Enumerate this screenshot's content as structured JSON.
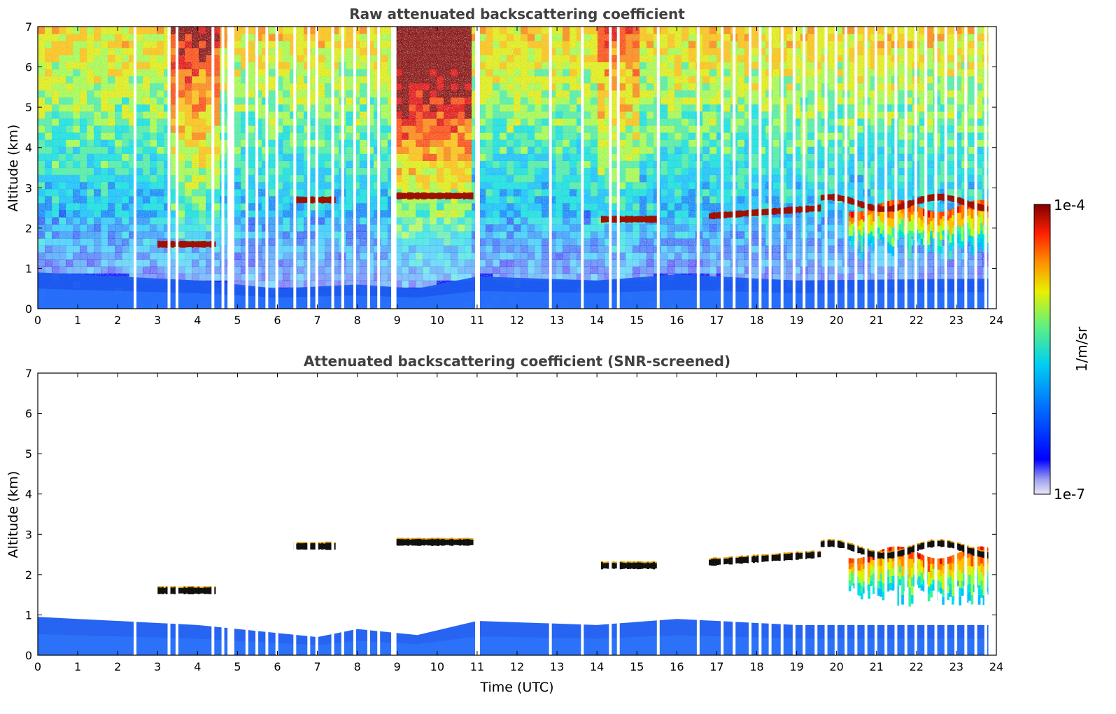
{
  "chart_data": [
    {
      "type": "heatmap",
      "title": "Raw attenuated backscattering coefficient",
      "xlabel": "",
      "ylabel": "Altitude (km)",
      "xlim": [
        0,
        24
      ],
      "ylim": [
        0,
        7
      ],
      "xticks": [
        "0",
        "1",
        "2",
        "3",
        "4",
        "5",
        "6",
        "7",
        "8",
        "9",
        "10",
        "11",
        "12",
        "13",
        "14",
        "15",
        "16",
        "17",
        "18",
        "19",
        "20",
        "21",
        "22",
        "23",
        "24"
      ],
      "yticks": [
        "0",
        "1",
        "2",
        "3",
        "4",
        "5",
        "6",
        "7"
      ],
      "noise_top": true,
      "cloud_layers": [
        {
          "t_start": 3.0,
          "t_end": 4.4,
          "alt": 1.6
        },
        {
          "t_start": 6.4,
          "t_end": 7.4,
          "alt": 2.7
        },
        {
          "t_start": 8.9,
          "t_end": 10.9,
          "alt": 2.8
        },
        {
          "t_start": 14.1,
          "t_end": 15.5,
          "alt": 2.22
        },
        {
          "t_start": 16.8,
          "t_end": 19.6,
          "alt": 2.4
        },
        {
          "t_start": 19.6,
          "t_end": 23.8,
          "alt": 2.62
        }
      ],
      "boundary_layer_top": [
        [
          0,
          0.9
        ],
        [
          2,
          0.8
        ],
        [
          4,
          0.7
        ],
        [
          6,
          0.5
        ],
        [
          8,
          0.6
        ],
        [
          9.5,
          0.5
        ],
        [
          11,
          0.8
        ],
        [
          14,
          0.7
        ],
        [
          16,
          0.85
        ],
        [
          19,
          0.7
        ],
        [
          24,
          0.75
        ]
      ],
      "data_gaps_hours": [
        2.4,
        3.25,
        3.45,
        4.35,
        4.6,
        4.85,
        5.2,
        5.45,
        5.7,
        5.95,
        6.4,
        6.75,
        6.95,
        7.35,
        7.6,
        7.9,
        8.25,
        8.5,
        8.85,
        11.0,
        12.8,
        13.6,
        14.3,
        14.5,
        15.5,
        16.5,
        17.1,
        17.4,
        17.8,
        18.05,
        18.3,
        18.6,
        18.9,
        19.15,
        19.45,
        19.7,
        19.95,
        20.2,
        20.45,
        20.7,
        20.95,
        21.2,
        21.45,
        21.7,
        21.95,
        22.2,
        22.45,
        22.7,
        22.95,
        23.2,
        23.45,
        23.7
      ]
    },
    {
      "type": "heatmap",
      "title": "Attenuated backscattering coefficient (SNR-screened)",
      "xlabel": "Time (UTC)",
      "ylabel": "Altitude (km)",
      "xlim": [
        0,
        24
      ],
      "ylim": [
        0,
        7
      ],
      "xticks": [
        "0",
        "1",
        "2",
        "3",
        "4",
        "5",
        "6",
        "7",
        "8",
        "9",
        "10",
        "11",
        "12",
        "13",
        "14",
        "15",
        "16",
        "17",
        "18",
        "19",
        "20",
        "21",
        "22",
        "23",
        "24"
      ],
      "yticks": [
        "0",
        "1",
        "2",
        "3",
        "4",
        "5",
        "6",
        "7"
      ],
      "noise_top": false,
      "cloud_layers": [
        {
          "t_start": 3.0,
          "t_end": 4.4,
          "alt": 1.6
        },
        {
          "t_start": 6.4,
          "t_end": 7.4,
          "alt": 2.7
        },
        {
          "t_start": 8.9,
          "t_end": 10.9,
          "alt": 2.8
        },
        {
          "t_start": 14.1,
          "t_end": 15.5,
          "alt": 2.22
        },
        {
          "t_start": 16.8,
          "t_end": 19.6,
          "alt": 2.4
        },
        {
          "t_start": 19.6,
          "t_end": 23.8,
          "alt": 2.62
        }
      ],
      "boundary_layer_top": [
        [
          0,
          0.95
        ],
        [
          2,
          0.85
        ],
        [
          4,
          0.75
        ],
        [
          6,
          0.55
        ],
        [
          7,
          0.45
        ],
        [
          8,
          0.65
        ],
        [
          9.5,
          0.5
        ],
        [
          11,
          0.85
        ],
        [
          14,
          0.75
        ],
        [
          16,
          0.9
        ],
        [
          19,
          0.75
        ],
        [
          24,
          0.75
        ]
      ],
      "data_gaps_hours": [
        2.4,
        3.25,
        3.45,
        4.35,
        4.6,
        4.85,
        5.2,
        5.45,
        5.7,
        5.95,
        6.4,
        6.75,
        6.95,
        7.35,
        7.6,
        7.9,
        8.25,
        8.5,
        8.85,
        11.0,
        12.8,
        13.6,
        14.3,
        14.5,
        15.5,
        16.5,
        17.1,
        17.4,
        17.8,
        18.05,
        18.3,
        18.6,
        18.9,
        19.15,
        19.45,
        19.7,
        19.95,
        20.2,
        20.45,
        20.7,
        20.95,
        21.2,
        21.45,
        21.7,
        21.95,
        22.2,
        22.45,
        22.7,
        22.95,
        23.2,
        23.45,
        23.7
      ]
    }
  ],
  "colorbar": {
    "label": "1/m/sr",
    "max_label": "1e-4",
    "min_label": "1e-7",
    "colors": [
      "#e8e8f8",
      "#c0c0f0",
      "#8080ff",
      "#0000ff",
      "#0040ff",
      "#0080ff",
      "#00c0ff",
      "#00e0e0",
      "#40f0a0",
      "#a0ff40",
      "#e0f000",
      "#ffc000",
      "#ff8000",
      "#ff4000",
      "#e00000",
      "#800000"
    ]
  }
}
